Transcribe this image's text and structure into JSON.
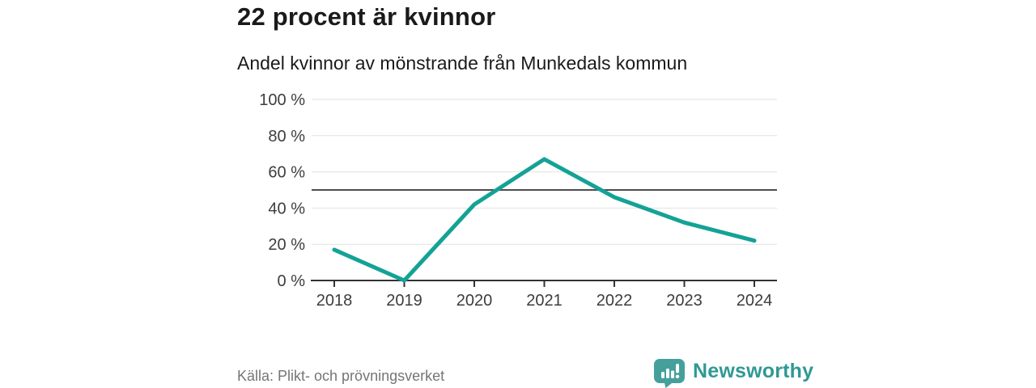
{
  "header": {
    "title": "22 procent är kvinnor",
    "subtitle": "Andel kvinnor av mönstrande från Munkedals kommun"
  },
  "chart_data": {
    "type": "line",
    "categories": [
      "2018",
      "2019",
      "2020",
      "2021",
      "2022",
      "2023",
      "2024"
    ],
    "values": [
      17,
      0,
      42,
      67,
      46,
      32,
      22
    ],
    "title": "22 procent är kvinnor",
    "subtitle": "Andel kvinnor av mönstrande från Munkedals kommun",
    "xlabel": "",
    "ylabel": "",
    "ylim": [
      0,
      100
    ],
    "yticks": [
      0,
      20,
      40,
      60,
      80,
      100
    ],
    "ytick_suffix": " %",
    "reference_line": 50,
    "grid": true,
    "legend_position": "none",
    "line_color": "#14a296",
    "grid_color": "#e2e2e2",
    "reference_line_color": "#4d4d4d",
    "axis_color": "#333333",
    "tick_label_color": "#3d3d3d"
  },
  "footer": {
    "source": "Källa: Plikt- och prövningsverket",
    "brand": "Newsworthy",
    "brand_text_color": "#2f9995",
    "logo_icon": "speech-bubble-bar-chart-icon",
    "logo_color": "#45a09c"
  }
}
